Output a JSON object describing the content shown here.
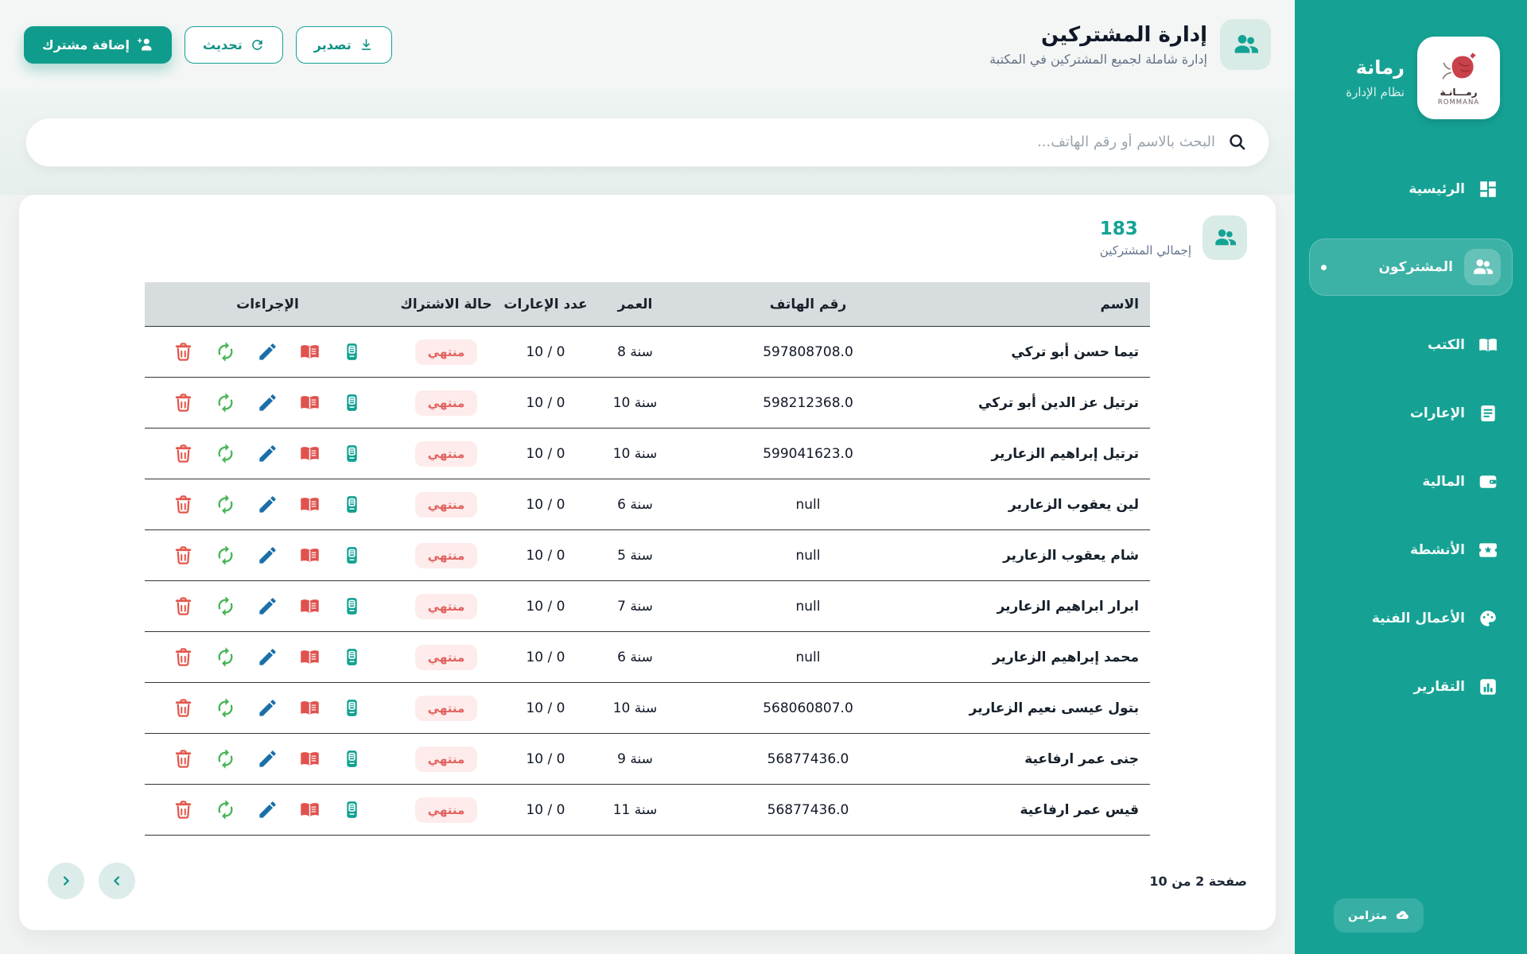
{
  "colors": {
    "accent": "#14a294",
    "sidebar_bg": "#15a294",
    "status_expired_text": "#e2615e",
    "status_expired_bg": "#fdeceb",
    "table_header_bg": "#d7dcde",
    "delete_red": "#e2574c",
    "renew_green": "#46b556",
    "edit_blue": "#1b6fa8",
    "book_red": "#e0524e",
    "card_teal": "#11a192"
  },
  "sidebar": {
    "brand": {
      "title": "رمانة",
      "subtitle": "نظام الإدارة",
      "logo_caption_ar": "رمـــانـة",
      "logo_caption_en": "ROMMANA"
    },
    "items": [
      {
        "id": "home",
        "label": "الرئيسية",
        "icon": "dashboard-icon",
        "active": false
      },
      {
        "id": "subscribers",
        "label": "المشتركون",
        "icon": "users-icon",
        "active": true
      },
      {
        "id": "books",
        "label": "الكتب",
        "icon": "book-icon",
        "active": false
      },
      {
        "id": "loans",
        "label": "الإعارات",
        "icon": "loans-icon",
        "active": false
      },
      {
        "id": "finance",
        "label": "المالية",
        "icon": "wallet-icon",
        "active": false
      },
      {
        "id": "activities",
        "label": "الأنشطة",
        "icon": "ticket-icon",
        "active": false
      },
      {
        "id": "artworks",
        "label": "الأعمال الفنية",
        "icon": "palette-icon",
        "active": false
      },
      {
        "id": "reports",
        "label": "التقارير",
        "icon": "reports-icon",
        "active": false
      }
    ],
    "sync": {
      "label": "متزامن"
    }
  },
  "header": {
    "title": "إدارة المشتركين",
    "subtitle": "إدارة شاملة لجميع المشتركين في المكتبة",
    "buttons": {
      "add": "إضافة مشترك",
      "refresh": "تحديث",
      "export": "تصدير"
    }
  },
  "search": {
    "placeholder": "البحث بالاسم أو رقم الهاتف..."
  },
  "stats": {
    "total": "183",
    "label": "إجمالي المشتركين"
  },
  "table": {
    "headers": {
      "name": "الاسم",
      "phone": "رقم الهاتف",
      "age": "العمر",
      "loans": "عدد الإعارات",
      "status": "حالة الاشتراك",
      "actions": "الإجراءات"
    },
    "row_actions": [
      {
        "id": "membership-card",
        "icon": "card-icon"
      },
      {
        "id": "loans-history",
        "icon": "open-book-icon"
      },
      {
        "id": "edit",
        "icon": "pencil-icon"
      },
      {
        "id": "renew",
        "icon": "renew-icon"
      },
      {
        "id": "delete",
        "icon": "trash-icon"
      }
    ],
    "rows": [
      {
        "name": "تيما حسن أبو تركي",
        "phone": "597808708.0",
        "age": "8 سنة",
        "loans": "0 / 10",
        "status": "منتهي"
      },
      {
        "name": "ترتيل عز الدين أبو تركي",
        "phone": "598212368.0",
        "age": "10 سنة",
        "loans": "0 / 10",
        "status": "منتهي"
      },
      {
        "name": "ترتيل إبراهيم الزعارير",
        "phone": "599041623.0",
        "age": "10 سنة",
        "loans": "0 / 10",
        "status": "منتهي"
      },
      {
        "name": "لين يعقوب الزعارير",
        "phone": "null",
        "age": "6 سنة",
        "loans": "0 / 10",
        "status": "منتهي"
      },
      {
        "name": "شام يعقوب الزعارير",
        "phone": "null",
        "age": "5 سنة",
        "loans": "0 / 10",
        "status": "منتهي"
      },
      {
        "name": "ابرار ابراهيم الزعارير",
        "phone": "null",
        "age": "7 سنة",
        "loans": "0 / 10",
        "status": "منتهي"
      },
      {
        "name": "محمد إبراهيم الزعارير",
        "phone": "null",
        "age": "6 سنة",
        "loans": "0 / 10",
        "status": "منتهي"
      },
      {
        "name": "بتول عيسى نعيم الزعارير",
        "phone": "568060807.0",
        "age": "10 سنة",
        "loans": "0 / 10",
        "status": "منتهي"
      },
      {
        "name": "جنى عمر ارفاعية",
        "phone": "56877436.0",
        "age": "9 سنة",
        "loans": "0 / 10",
        "status": "منتهي"
      },
      {
        "name": "قيس عمر ارفاعية",
        "phone": "56877436.0",
        "age": "11 سنة",
        "loans": "0 / 10",
        "status": "منتهي"
      }
    ]
  },
  "pagination": {
    "label": "صفحة 2 من 10"
  }
}
